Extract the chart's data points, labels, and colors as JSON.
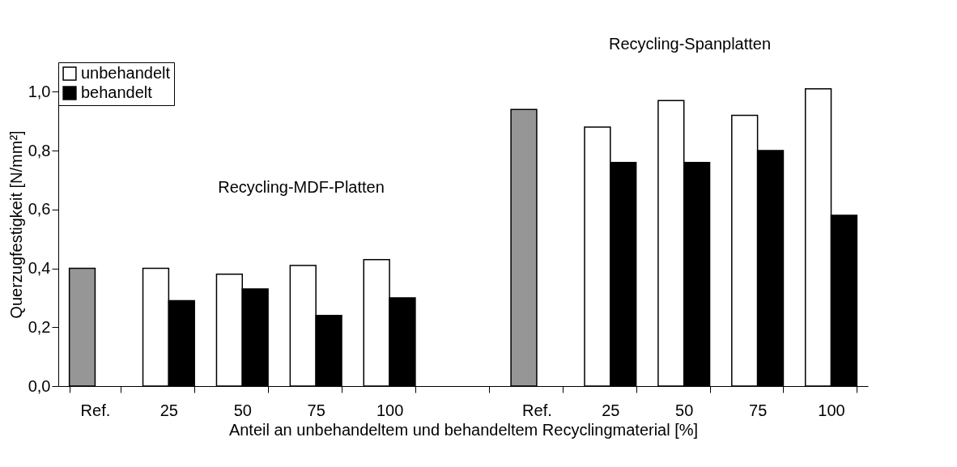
{
  "chart_data": {
    "type": "bar",
    "ylabel": "Querzugfestigkeit [N/mm²]",
    "xlabel": "Anteil an unbehandeltem und behandeltem Recyclingmaterial [%]",
    "categories": [
      "Ref.",
      "25",
      "50",
      "75",
      "100",
      null,
      "Ref.",
      "25",
      "50",
      "75",
      "100"
    ],
    "series": [
      {
        "name": "unbehandelt",
        "color": "#ffffff",
        "colors": [
          "#969696",
          "#ffffff",
          "#ffffff",
          "#ffffff",
          "#ffffff",
          "#ffffff",
          "#969696",
          "#ffffff",
          "#ffffff",
          "#ffffff",
          "#ffffff"
        ],
        "values": [
          0.4,
          0.4,
          0.38,
          0.41,
          0.43,
          null,
          0.94,
          0.88,
          0.97,
          0.92,
          1.01
        ]
      },
      {
        "name": "behandelt",
        "color": "#000000",
        "values": [
          null,
          0.29,
          0.33,
          0.24,
          0.3,
          null,
          null,
          0.76,
          0.76,
          0.8,
          0.58
        ]
      }
    ],
    "ylim": [
      0,
      1.1
    ],
    "yticks": [
      {
        "value": 0,
        "label": "0,0"
      },
      {
        "value": 0.2,
        "label": "0,2"
      },
      {
        "value": 0.4,
        "label": "0,4"
      },
      {
        "value": 0.6,
        "label": "0,6"
      },
      {
        "value": 0.8,
        "label": "0,8"
      },
      {
        "value": 1.0,
        "label": "1,0"
      }
    ],
    "annotations": [
      "Recycling-MDF-Platten",
      "Recycling-Spanplatten"
    ],
    "legend": "top left",
    "grid": false
  }
}
